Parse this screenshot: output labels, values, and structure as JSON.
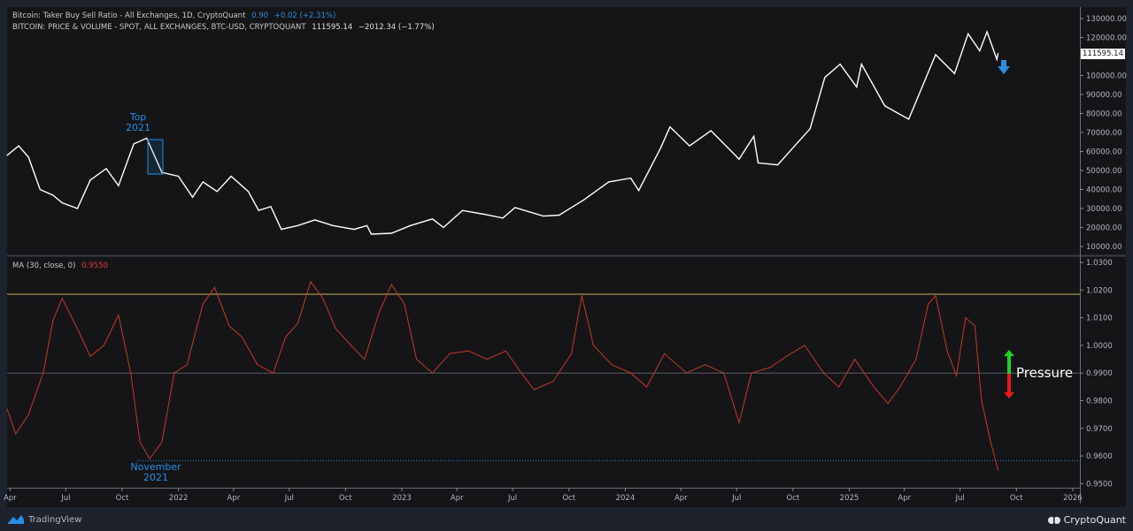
{
  "legend": {
    "ratio_title": "Bitcoin: Taker Buy Sell Ratio - All Exchanges, 1D, CryptoQuant",
    "ratio_value": "0.90",
    "ratio_change": "+0.02 (+2.31%)",
    "price_title": "BITCOIN: PRICE & VOLUME - SPOT, ALL EXCHANGES, BTC-USD, CRYPTOQUANT",
    "price_value": "111595.14",
    "price_change": "−2012.34 (−1.77%)",
    "ma_title": "MA (30, close, 0)",
    "ma_value": "0.9550"
  },
  "last_price_label": "111595.14",
  "annotations": {
    "top_2021_line1": "Top",
    "top_2021_line2": "2021",
    "nov_2021_line1": "November",
    "nov_2021_line2": "2021",
    "pressure": "Pressure"
  },
  "footer": {
    "tradingview": "TradingView",
    "cryptoquant": "CryptoQuant"
  },
  "colors": {
    "price_line": "#ffffff",
    "ma_line": "#c0392b",
    "accent_blue": "#2a8de0",
    "resistance_line": "#c9b458",
    "pressure_up": "#1fd51f",
    "pressure_down": "#e81919"
  },
  "chart_data": [
    {
      "type": "line",
      "pane": "top",
      "name": "BITCOIN: PRICE & VOLUME - SPOT, ALL EXCHANGES, BTC-USD, CRYPTOQUANT",
      "ylim": [
        5000,
        133000
      ],
      "yticks": [
        "130000.00",
        "120000.00",
        "100000.00",
        "90000.00",
        "80000.00",
        "70000.00",
        "60000.00",
        "50000.00",
        "40000.00",
        "30000.00",
        "20000.00",
        "10000.00"
      ],
      "ytick_values": [
        130000,
        120000,
        100000,
        90000,
        80000,
        70000,
        60000,
        50000,
        40000,
        30000,
        20000,
        10000
      ],
      "x": [
        "2021-03-27",
        "2021-04-15",
        "2021-05-01",
        "2021-05-20",
        "2021-06-10",
        "2021-06-25",
        "2021-07-20",
        "2021-08-10",
        "2021-09-05",
        "2021-09-25",
        "2021-10-20",
        "2021-11-10",
        "2021-12-05",
        "2022-01-01",
        "2022-01-24",
        "2022-02-10",
        "2022-03-05",
        "2022-03-28",
        "2022-04-25",
        "2022-05-12",
        "2022-06-01",
        "2022-06-18",
        "2022-07-15",
        "2022-08-12",
        "2022-09-10",
        "2022-10-15",
        "2022-11-05",
        "2022-11-12",
        "2022-12-15",
        "2023-01-15",
        "2023-02-20",
        "2023-03-10",
        "2023-04-10",
        "2023-05-15",
        "2023-06-15",
        "2023-07-05",
        "2023-08-20",
        "2023-09-15",
        "2023-10-25",
        "2023-12-05",
        "2024-01-10",
        "2024-01-23",
        "2024-02-28",
        "2024-03-14",
        "2024-04-15",
        "2024-05-20",
        "2024-07-05",
        "2024-07-29",
        "2024-08-05",
        "2024-09-06",
        "2024-10-29",
        "2024-11-22",
        "2024-12-17",
        "2025-01-13",
        "2025-01-21",
        "2025-02-28",
        "2025-04-08",
        "2025-05-22",
        "2025-06-22",
        "2025-07-14",
        "2025-08-02",
        "2025-08-14",
        "2025-08-30",
        "2025-09-01"
      ],
      "y": [
        58000,
        63000,
        57000,
        40000,
        37000,
        33000,
        30000,
        45000,
        51000,
        42000,
        64000,
        67000,
        49000,
        47000,
        36000,
        44000,
        39000,
        47000,
        39000,
        29000,
        31000,
        19000,
        21000,
        24000,
        21000,
        19000,
        21000,
        16500,
        17000,
        21000,
        24500,
        20000,
        29000,
        27000,
        25000,
        30500,
        26000,
        26500,
        34500,
        44000,
        46000,
        39500,
        62000,
        73000,
        63000,
        71000,
        56000,
        68000,
        54000,
        53000,
        72000,
        99000,
        106000,
        94000,
        106000,
        84000,
        77000,
        111000,
        101000,
        122000,
        113000,
        123000,
        108500,
        111595
      ]
    },
    {
      "type": "line",
      "pane": "bottom",
      "name": "MA (30, close, 0)",
      "ylim": [
        0.9485,
        1.0315
      ],
      "yticks": [
        "1.0300",
        "1.0200",
        "1.0100",
        "1.0000",
        "0.9900",
        "0.9800",
        "0.9700",
        "0.9600",
        "0.9500"
      ],
      "ytick_values": [
        1.03,
        1.02,
        1.01,
        1.0,
        0.99,
        0.98,
        0.97,
        0.96,
        0.95
      ],
      "horizontal_lines": [
        1.0185,
        0.99,
        0.9583
      ],
      "x": [
        "2021-03-27",
        "2021-04-10",
        "2021-05-01",
        "2021-05-25",
        "2021-06-10",
        "2021-06-25",
        "2021-07-20",
        "2021-08-10",
        "2021-09-01",
        "2021-09-25",
        "2021-10-15",
        "2021-10-30",
        "2021-11-15",
        "2021-12-05",
        "2021-12-25",
        "2022-01-15",
        "2022-02-10",
        "2022-03-01",
        "2022-03-25",
        "2022-04-15",
        "2022-05-10",
        "2022-06-05",
        "2022-06-25",
        "2022-07-15",
        "2022-08-05",
        "2022-08-25",
        "2022-09-15",
        "2022-10-10",
        "2022-11-01",
        "2022-11-25",
        "2022-12-15",
        "2023-01-05",
        "2023-01-25",
        "2023-02-20",
        "2023-03-20",
        "2023-04-20",
        "2023-05-20",
        "2023-06-20",
        "2023-07-15",
        "2023-08-05",
        "2023-09-05",
        "2023-10-05",
        "2023-10-22",
        "2023-11-10",
        "2023-12-10",
        "2024-01-10",
        "2024-02-05",
        "2024-03-05",
        "2024-04-10",
        "2024-05-10",
        "2024-06-10",
        "2024-07-05",
        "2024-07-25",
        "2024-08-25",
        "2024-09-20",
        "2024-10-20",
        "2024-11-20",
        "2024-12-15",
        "2025-01-10",
        "2025-02-10",
        "2025-03-05",
        "2025-03-25",
        "2025-04-20",
        "2025-05-10",
        "2025-05-22",
        "2025-06-10",
        "2025-06-25",
        "2025-07-10",
        "2025-07-25",
        "2025-08-05",
        "2025-08-20",
        "2025-09-01"
      ],
      "y": [
        0.977,
        0.968,
        0.975,
        0.99,
        1.009,
        1.017,
        1.006,
        0.996,
        1.0,
        1.011,
        0.99,
        0.965,
        0.959,
        0.965,
        0.99,
        0.993,
        1.015,
        1.021,
        1.007,
        1.003,
        0.993,
        0.99,
        1.003,
        1.008,
        1.023,
        1.017,
        1.006,
        1.0,
        0.995,
        1.012,
        1.022,
        1.015,
        0.995,
        0.99,
        0.997,
        0.998,
        0.995,
        0.998,
        0.99,
        0.984,
        0.987,
        0.997,
        1.018,
        1.0,
        0.993,
        0.99,
        0.985,
        0.997,
        0.99,
        0.993,
        0.99,
        0.972,
        0.99,
        0.992,
        0.996,
        1.0,
        0.99,
        0.985,
        0.995,
        0.985,
        0.979,
        0.985,
        0.995,
        1.015,
        1.018,
        0.998,
        0.989,
        1.01,
        1.007,
        0.98,
        0.965,
        0.955
      ]
    }
  ],
  "x_axis": {
    "ticks": [
      "Apr",
      "Jul",
      "Oct",
      "2022",
      "Apr",
      "Jul",
      "Oct",
      "2023",
      "Apr",
      "Jul",
      "Oct",
      "2024",
      "Apr",
      "Jul",
      "Oct",
      "2025",
      "Apr",
      "Jul",
      "Oct",
      "2026"
    ],
    "tick_dates": [
      "2021-04-01",
      "2021-07-01",
      "2021-10-01",
      "2022-01-01",
      "2022-04-01",
      "2022-07-01",
      "2022-10-01",
      "2023-01-01",
      "2023-04-01",
      "2023-07-01",
      "2023-10-01",
      "2024-01-01",
      "2024-04-01",
      "2024-07-01",
      "2024-10-01",
      "2025-01-01",
      "2025-04-01",
      "2025-07-01",
      "2025-10-01",
      "2026-01-01"
    ]
  }
}
